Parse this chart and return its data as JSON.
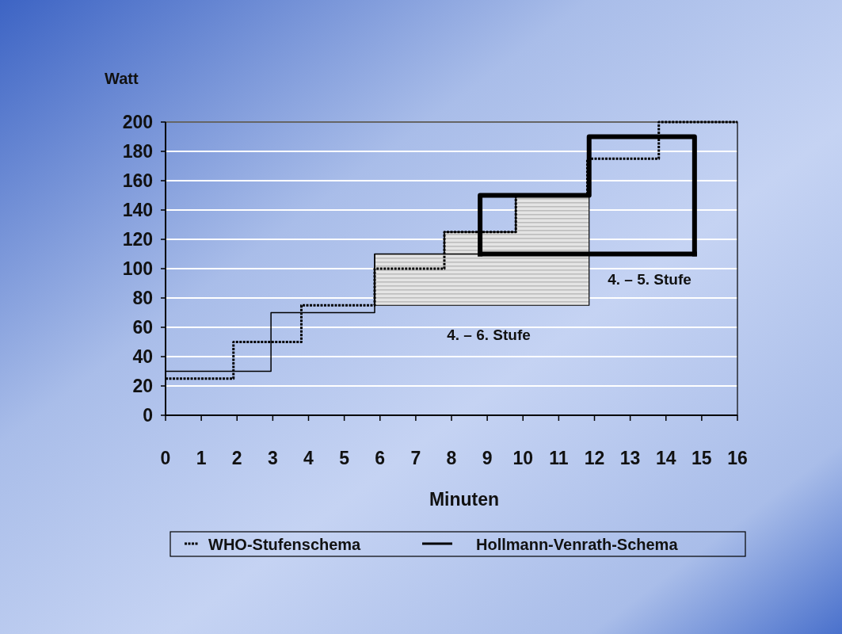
{
  "chart_data": {
    "type": "step",
    "xlabel": "Minuten",
    "ylabel": "Watt",
    "xlim": [
      0,
      16
    ],
    "xticks": [
      0,
      1,
      2,
      3,
      4,
      5,
      6,
      7,
      8,
      9,
      10,
      11,
      12,
      13,
      14,
      15,
      16
    ],
    "ylim": [
      0,
      200
    ],
    "yticks": [
      0,
      20,
      40,
      60,
      80,
      100,
      120,
      140,
      160,
      180,
      200
    ],
    "grid": "y",
    "legend": "bottom",
    "series": [
      {
        "color": "#000000",
        "line_style": "solid",
        "x": [
          5.85,
          7.8,
          9.8,
          11.85
        ],
        "values": [
          110,
          125,
          150,
          150
        ],
        "lower": [
          75,
          75,
          75,
          75
        ],
        "upper": [
          110,
          125,
          150,
          150
        ]
      },
      {
        "name": "WHO-Stufenschema",
        "color": "#000000",
        "line_style": "dotted",
        "x": [
          0,
          1.9,
          3.8,
          5.85,
          7.8,
          9.8,
          11.8,
          13.8,
          16
        ],
        "values": [
          25,
          50,
          75,
          100,
          125,
          150,
          175,
          200,
          200
        ]
      },
      {
        "name": "Hollmann-Venrath-Schema",
        "color": "#000000",
        "line_style": "solid",
        "x": [
          0,
          2.95,
          5.85,
          8.8,
          11.85,
          14.8
        ],
        "values": [
          30,
          70,
          110,
          150,
          190,
          190
        ]
      },
      {
        "type": "step",
        "color": "#000000",
        "line_style": "solid",
        "x": [
          8.8,
          8.8,
          11.85,
          14.8,
          14.8
        ],
        "values": [
          110,
          150,
          190,
          190,
          110
        ]
      },
      {
        "type": "line",
        "color": "#000000",
        "line_style": "solid",
        "x": [
          8.8,
          14.8
        ],
        "values": [
          110,
          110
        ]
      }
    ],
    "annotations": [
      "4. – 5. Stufe",
      "4. – 6. Stufe"
    ]
  }
}
